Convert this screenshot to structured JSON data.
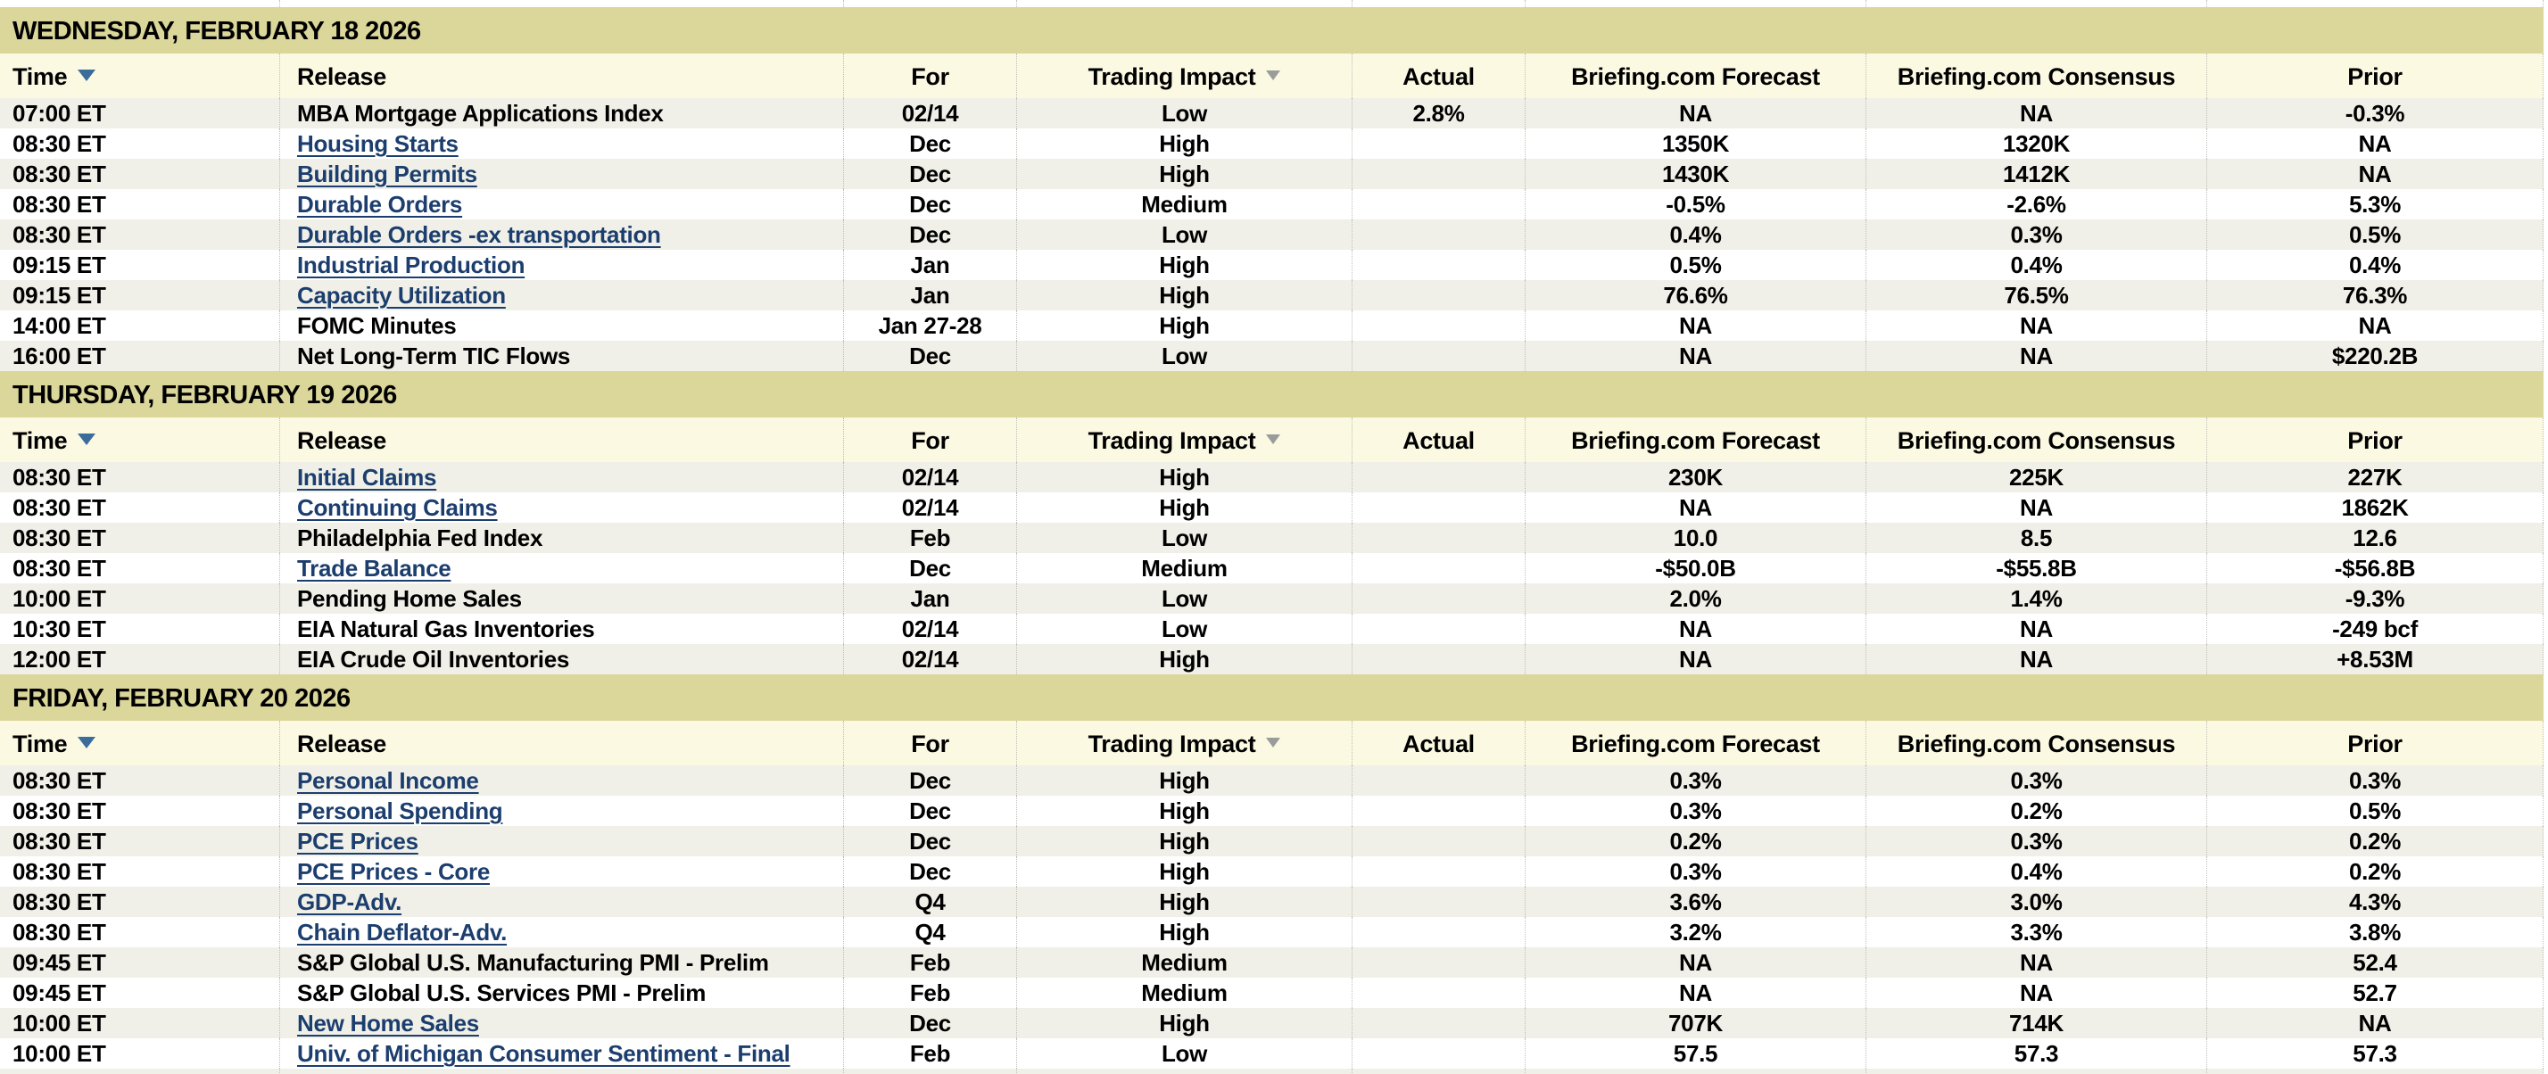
{
  "colors": {
    "section_header_bg": "#dbd69a",
    "column_header_bg": "#fbf9e2",
    "row_bg": "#ffffff",
    "row_alt_bg": "#f0f0e8",
    "text_color": "#000000",
    "link_color": "#1c3e6e",
    "sort_arrow_color": "#3a6d99",
    "filter_arrow_color": "#9b9b9b",
    "divider_color": "#bfbfb9"
  },
  "columns": [
    {
      "label": "Time",
      "align": "left",
      "sortable": true,
      "icon": "sort-down-arrow"
    },
    {
      "label": "Release",
      "align": "left",
      "sortable": false
    },
    {
      "label": "For",
      "align": "center",
      "sortable": false
    },
    {
      "label": "Trading Impact",
      "align": "center",
      "sortable": true,
      "icon": "filter-down-arrow"
    },
    {
      "label": "Actual",
      "align": "center",
      "sortable": false
    },
    {
      "label": "Briefing.com Forecast",
      "align": "center",
      "sortable": false
    },
    {
      "label": "Briefing.com Consensus",
      "align": "center",
      "sortable": false
    },
    {
      "label": "Prior",
      "align": "center",
      "sortable": false
    }
  ],
  "sections": [
    {
      "date_header": "WEDNESDAY, FEBRUARY 18 2026",
      "rows": [
        {
          "time": "07:00 ET",
          "release": "MBA Mortgage Applications Index",
          "link": false,
          "for": "02/14",
          "impact": "Low",
          "actual": "2.8%",
          "forecast": "NA",
          "consensus": "NA",
          "prior": "-0.3%"
        },
        {
          "time": "08:30 ET",
          "release": "Housing Starts",
          "link": true,
          "for": "Dec",
          "impact": "High",
          "actual": "",
          "forecast": "1350K",
          "consensus": "1320K",
          "prior": "NA"
        },
        {
          "time": "08:30 ET",
          "release": "Building Permits",
          "link": true,
          "for": "Dec",
          "impact": "High",
          "actual": "",
          "forecast": "1430K",
          "consensus": "1412K",
          "prior": "NA"
        },
        {
          "time": "08:30 ET",
          "release": "Durable Orders",
          "link": true,
          "for": "Dec",
          "impact": "Medium",
          "actual": "",
          "forecast": "-0.5%",
          "consensus": "-2.6%",
          "prior": "5.3%"
        },
        {
          "time": "08:30 ET",
          "release": "Durable Orders -ex transportation",
          "link": true,
          "for": "Dec",
          "impact": "Low",
          "actual": "",
          "forecast": "0.4%",
          "consensus": "0.3%",
          "prior": "0.5%"
        },
        {
          "time": "09:15 ET",
          "release": "Industrial Production",
          "link": true,
          "for": "Jan",
          "impact": "High",
          "actual": "",
          "forecast": "0.5%",
          "consensus": "0.4%",
          "prior": "0.4%"
        },
        {
          "time": "09:15 ET",
          "release": "Capacity Utilization",
          "link": true,
          "for": "Jan",
          "impact": "High",
          "actual": "",
          "forecast": "76.6%",
          "consensus": "76.5%",
          "prior": "76.3%"
        },
        {
          "time": "14:00 ET",
          "release": "FOMC Minutes",
          "link": false,
          "for": "Jan 27-28",
          "impact": "High",
          "actual": "",
          "forecast": "NA",
          "consensus": "NA",
          "prior": "NA"
        },
        {
          "time": "16:00 ET",
          "release": "Net Long-Term TIC Flows",
          "link": false,
          "for": "Dec",
          "impact": "Low",
          "actual": "",
          "forecast": "NA",
          "consensus": "NA",
          "prior": "$220.2B"
        }
      ]
    },
    {
      "date_header": "THURSDAY, FEBRUARY 19 2026",
      "rows": [
        {
          "time": "08:30 ET",
          "release": "Initial Claims",
          "link": true,
          "for": "02/14",
          "impact": "High",
          "actual": "",
          "forecast": "230K",
          "consensus": "225K",
          "prior": "227K"
        },
        {
          "time": "08:30 ET",
          "release": "Continuing Claims",
          "link": true,
          "for": "02/14",
          "impact": "High",
          "actual": "",
          "forecast": "NA",
          "consensus": "NA",
          "prior": "1862K"
        },
        {
          "time": "08:30 ET",
          "release": "Philadelphia Fed Index",
          "link": false,
          "for": "Feb",
          "impact": "Low",
          "actual": "",
          "forecast": "10.0",
          "consensus": "8.5",
          "prior": "12.6"
        },
        {
          "time": "08:30 ET",
          "release": "Trade Balance",
          "link": true,
          "for": "Dec",
          "impact": "Medium",
          "actual": "",
          "forecast": "-$50.0B",
          "consensus": "-$55.8B",
          "prior": "-$56.8B"
        },
        {
          "time": "10:00 ET",
          "release": "Pending Home Sales",
          "link": false,
          "for": "Jan",
          "impact": "Low",
          "actual": "",
          "forecast": "2.0%",
          "consensus": "1.4%",
          "prior": "-9.3%"
        },
        {
          "time": "10:30 ET",
          "release": "EIA Natural Gas Inventories",
          "link": false,
          "for": "02/14",
          "impact": "Low",
          "actual": "",
          "forecast": "NA",
          "consensus": "NA",
          "prior": "-249 bcf"
        },
        {
          "time": "12:00 ET",
          "release": "EIA Crude Oil Inventories",
          "link": false,
          "for": "02/14",
          "impact": "High",
          "actual": "",
          "forecast": "NA",
          "consensus": "NA",
          "prior": "+8.53M"
        }
      ]
    },
    {
      "date_header": "FRIDAY, FEBRUARY 20 2026",
      "rows": [
        {
          "time": "08:30 ET",
          "release": "Personal Income",
          "link": true,
          "for": "Dec",
          "impact": "High",
          "actual": "",
          "forecast": "0.3%",
          "consensus": "0.3%",
          "prior": "0.3%"
        },
        {
          "time": "08:30 ET",
          "release": "Personal Spending",
          "link": true,
          "for": "Dec",
          "impact": "High",
          "actual": "",
          "forecast": "0.3%",
          "consensus": "0.2%",
          "prior": "0.5%"
        },
        {
          "time": "08:30 ET",
          "release": "PCE Prices",
          "link": true,
          "for": "Dec",
          "impact": "High",
          "actual": "",
          "forecast": "0.2%",
          "consensus": "0.3%",
          "prior": "0.2%"
        },
        {
          "time": "08:30 ET",
          "release": "PCE Prices - Core",
          "link": true,
          "for": "Dec",
          "impact": "High",
          "actual": "",
          "forecast": "0.3%",
          "consensus": "0.4%",
          "prior": "0.2%"
        },
        {
          "time": "08:30 ET",
          "release": "GDP-Adv.",
          "link": true,
          "for": "Q4",
          "impact": "High",
          "actual": "",
          "forecast": "3.6%",
          "consensus": "3.0%",
          "prior": "4.3%"
        },
        {
          "time": "08:30 ET",
          "release": "Chain Deflator-Adv.",
          "link": true,
          "for": "Q4",
          "impact": "High",
          "actual": "",
          "forecast": "3.2%",
          "consensus": "3.3%",
          "prior": "3.8%"
        },
        {
          "time": "09:45 ET",
          "release": "S&P Global U.S. Manufacturing PMI - Prelim",
          "link": false,
          "for": "Feb",
          "impact": "Medium",
          "actual": "",
          "forecast": "NA",
          "consensus": "NA",
          "prior": "52.4"
        },
        {
          "time": "09:45 ET",
          "release": "S&P Global U.S. Services PMI - Prelim",
          "link": false,
          "for": "Feb",
          "impact": "Medium",
          "actual": "",
          "forecast": "NA",
          "consensus": "NA",
          "prior": "52.7"
        },
        {
          "time": "10:00 ET",
          "release": "New Home Sales",
          "link": true,
          "for": "Dec",
          "impact": "High",
          "actual": "",
          "forecast": "707K",
          "consensus": "714K",
          "prior": "NA"
        },
        {
          "time": "10:00 ET",
          "release": "Univ. of Michigan Consumer Sentiment - Final",
          "link": true,
          "for": "Feb",
          "impact": "Low",
          "actual": "",
          "forecast": "57.5",
          "consensus": "57.3",
          "prior": "57.3"
        }
      ]
    }
  ]
}
